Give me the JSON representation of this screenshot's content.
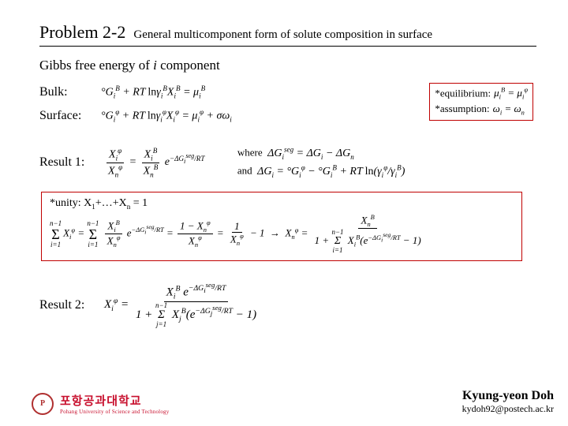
{
  "title": {
    "problem": "Problem 2-2",
    "subtitle": "General multicomponent form of solute composition in surface"
  },
  "heading": "Gibbs free energy of i component",
  "bulk": {
    "label": "Bulk:",
    "eq": "°G_i^B + RT ln γ_i^B X_i^B = μ_i^B"
  },
  "surface": {
    "label": "Surface:",
    "eq": "°G_i^φ + RT ln γ_i^φ X_i^φ = μ_i^φ + σω_i"
  },
  "equilibrium": {
    "label": "*equilibrium:",
    "eq": "μ_i^B = μ_i^φ"
  },
  "assumption": {
    "label": "*assumption:",
    "eq": "ω_i = ω_n"
  },
  "result1": {
    "label": "Result 1:",
    "frac_num": "X_i^φ",
    "frac_den": "X_n^φ",
    "rhs_num": "X_i^B",
    "rhs_den": "X_n^B",
    "exp": "e^{−ΔG_i^{seg}/RT}",
    "where_label": "where",
    "where_eq": "ΔG_i^{seg} = ΔG_i − ΔG_n",
    "and_label": "and",
    "and_eq": "ΔG_i = °G_i^φ − °G_i^B + RT ln(γ_i^φ / γ_i^B)"
  },
  "unity": {
    "title": "*unity: X₁+…+Xₙ = 1",
    "eq_line": "Σ_{i=1}^{n−1} X_i^φ = Σ_{i=1}^{n−1} (X_i^B / X_n^φ) e^{−ΔG_i^{seg}/RT} = (1 − X_n^φ)/X_n^φ = 1/X_n^φ − 1  →  X_n^φ = X_n^B / (1 + Σ_{i=1}^{n−1} X_i^B (e^{−ΔG_i^{seg}/RT} − 1))"
  },
  "result2": {
    "label": "Result 2:",
    "frac_num": "X_i^B e^{−ΔG_i^{seg}/RT}",
    "frac_den": "1 + Σ_{j=1}^{n−1} X_j^B (e^{−ΔG_j^{seg}/RT} − 1)"
  },
  "footer": {
    "uni_kr": "포항공과대학교",
    "uni_en": "Pohang University of Science and Technology",
    "author": "Kyung-yeon Doh",
    "email": "kydoh92@postech.ac.kr"
  },
  "colors": {
    "accent_red": "#c00000",
    "logo_red": "#c8102e",
    "text": "#000000",
    "bg": "#ffffff"
  }
}
